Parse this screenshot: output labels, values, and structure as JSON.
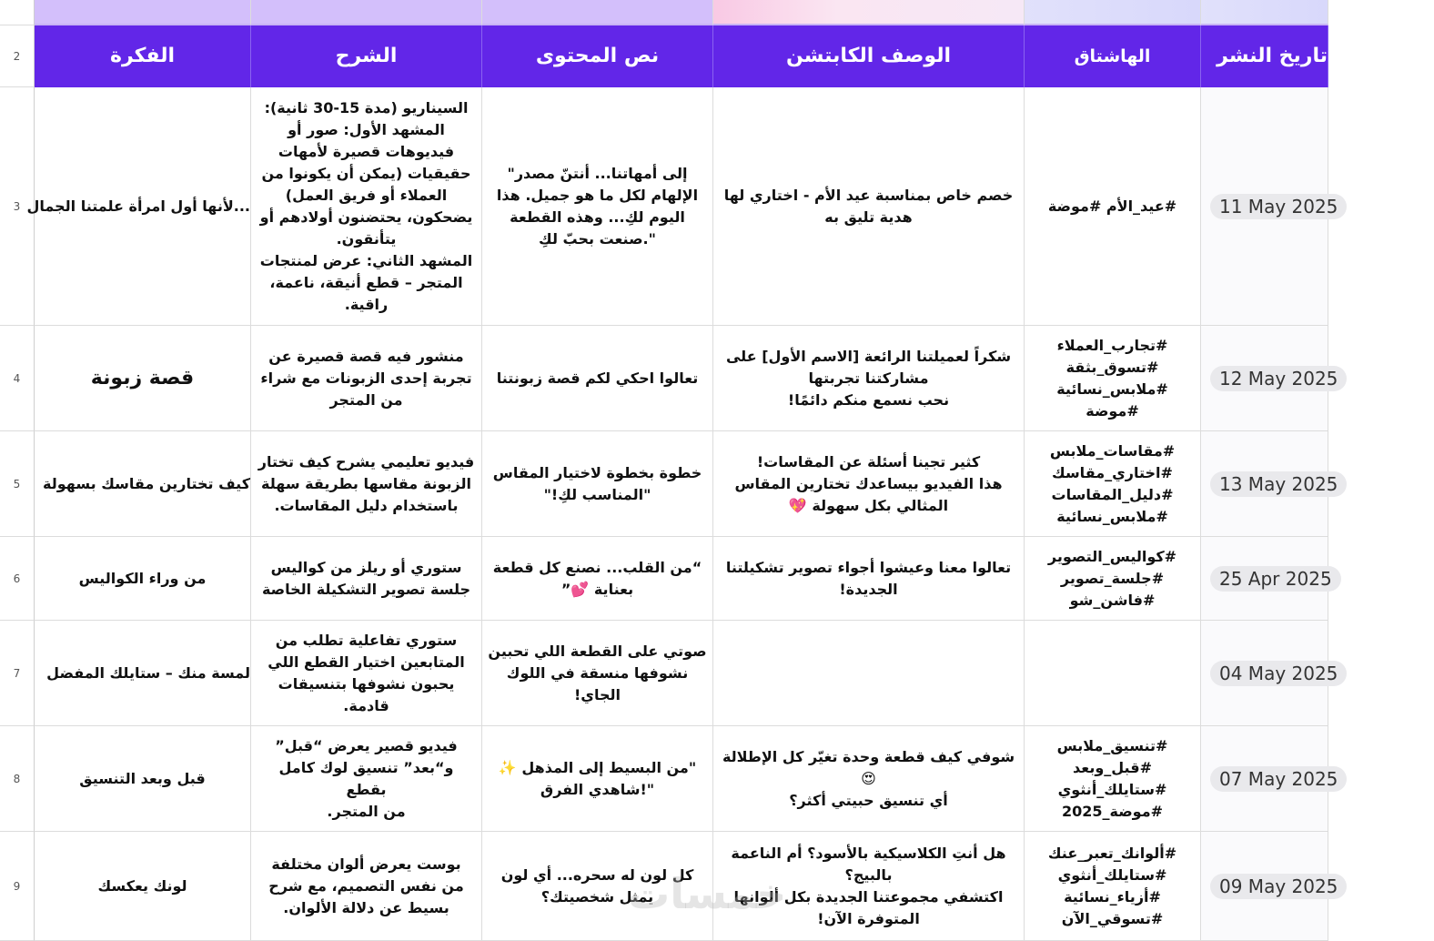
{
  "colors": {
    "header_bg": "#6226e8",
    "top_band": "#d3bffb",
    "date_pill": "#e9e9ec"
  },
  "headers": {
    "row_number": "2",
    "idea": "الفكرة",
    "explanation": "الشرح",
    "content_text": "نص المحتوى",
    "caption": "الوصف الكابتشن",
    "hashtag": "الهاشتاق",
    "publish_date": "تاريخ النشر"
  },
  "rows": [
    {
      "n": "3",
      "idea": "...لأنها أول امرأة علمتنا الجمال",
      "explanation": "السيناريو (مدة 15-30 ثانية):\nالمشهد الأول: صور أو\nفيديوهات قصيرة لأمهات\nحقيقيات (يمكن أن يكونوا من\nالعملاء أو فريق العمل)\nيضحكون، يحتضنون أولادهم أو\nيتأنقون.\nالمشهد الثاني: عرض لمنتجات\nالمتجر – قطع أنيقة، ناعمة،\nراقية.",
      "content": "إلى أمهاتنا... أنتنّ مصدر\"\nالإلهام لكل ما هو جميل. هذا\nاليوم لكِ... وهذه القطعة\n\".صنعت بحبّ لكِ",
      "caption": "خصم خاص بمناسبة عيد الأم - اختاري لها\nهدية تليق به",
      "hashtag": "#عيد_الأم #موضة",
      "date": "11 May 2025"
    },
    {
      "n": "4",
      "idea": "قصة زبونة",
      "explanation": "منشور فيه قصة قصيرة عن\nتجربة إحدى الزبونات مع شراء\nمن المتجر",
      "content": "تعالوا احكي لكم قصة زبونتنا",
      "caption": "شكراً لعميلتنا الرائعة [الاسم الأول] على\nمشاركتنا تجربتها\nنحب نسمع منكم دائمًا!",
      "hashtag": "#تجارب_العملاء\n#تسوق_بثقة\n#ملابس_نسائية\n#موضة",
      "date": "12 May 2025"
    },
    {
      "n": "5",
      "idea": "كيف تختارين مقاسك بسهولة",
      "explanation": "فيديو تعليمي يشرح كيف تختار\nالزبونة مقاسها بطريقة سهلة\nباستخدام دليل المقاسات.",
      "content": "خطوة بخطوة لاختيار المقاس\n\"المناسب لكِ!\"",
      "caption": "كثير تجينا أسئلة عن المقاسات!\nهذا الفيديو بيساعدك تختارين المقاس\nالمثالي بكل سهولة 💖",
      "hashtag": "#مقاسات_ملابس\n#اختاري_مقاسك\n#دليل_المقاسات\n#ملابس_نسائية",
      "date": "13 May 2025"
    },
    {
      "n": "6",
      "idea": "من وراء الكواليس",
      "explanation": "ستوري أو ريلز من كواليس\nجلسة تصوير التشكيلة الخاصة",
      "content": "“من القلب... نصنع كل قطعة\nبعناية 💕”",
      "caption": "تعالوا معنا وعيشوا أجواء تصوير تشكيلتنا\nالجديدة!",
      "hashtag": "#كواليس_التصوير\n#جلسة_تصوير\n#فاشن_شو",
      "date": "25 Apr 2025"
    },
    {
      "n": "7",
      "idea": "لمسة منك – ستايلك المفضل",
      "explanation": "ستوري تفاعلية تطلب من\nالمتابعين اختيار القطع اللي\nيحبون نشوفها بتنسيقات\nقادمة.",
      "content": "صوتي على القطعة اللي تحبين\nنشوفها منسقة في اللوك\nالجاي!",
      "caption": "",
      "hashtag": "",
      "date": "04 May 2025"
    },
    {
      "n": "8",
      "idea": "قبل وبعد التنسيق",
      "explanation": "فيديو قصير يعرض “قبل”\nو“بعد” تنسيق لوك كامل بقطع\nمن المتجر.",
      "content": "\"من البسيط إلى المذهل ✨\n\"!شاهدي الفرق",
      "caption": "شوفي كيف قطعة وحدة تغيّر كل الإطلالة\n😍\nأي تنسيق حبيتي أكثر؟",
      "hashtag": "#تنسيق_ملابس\n#قبل_وبعد\n#ستايلك_أنثوي\n#موضة_2025",
      "date": "07 May 2025"
    },
    {
      "n": "9",
      "idea": "لونك يعكسك",
      "explanation": "بوست يعرض ألوان مختلفة\nمن نفس التصميم، مع شرح\nبسيط عن دلالة الألوان.",
      "content": "كل لون له سحره... أي لون\nيمثل شخصيتك؟",
      "caption": "هل أنتِ الكلاسيكية بالأسود؟ أم الناعمة\nبالبيج؟\nاكتشفي مجموعتنا الجديدة بكل ألوانها\nالمتوفرة الآن!",
      "hashtag": "#ألوانك_تعبر_عنك\n#ستايلك_أنثوي\n#أزياء_نسائية\n#تسوقي_الآن",
      "date": "09 May 2025"
    }
  ],
  "watermark": "خمسات"
}
